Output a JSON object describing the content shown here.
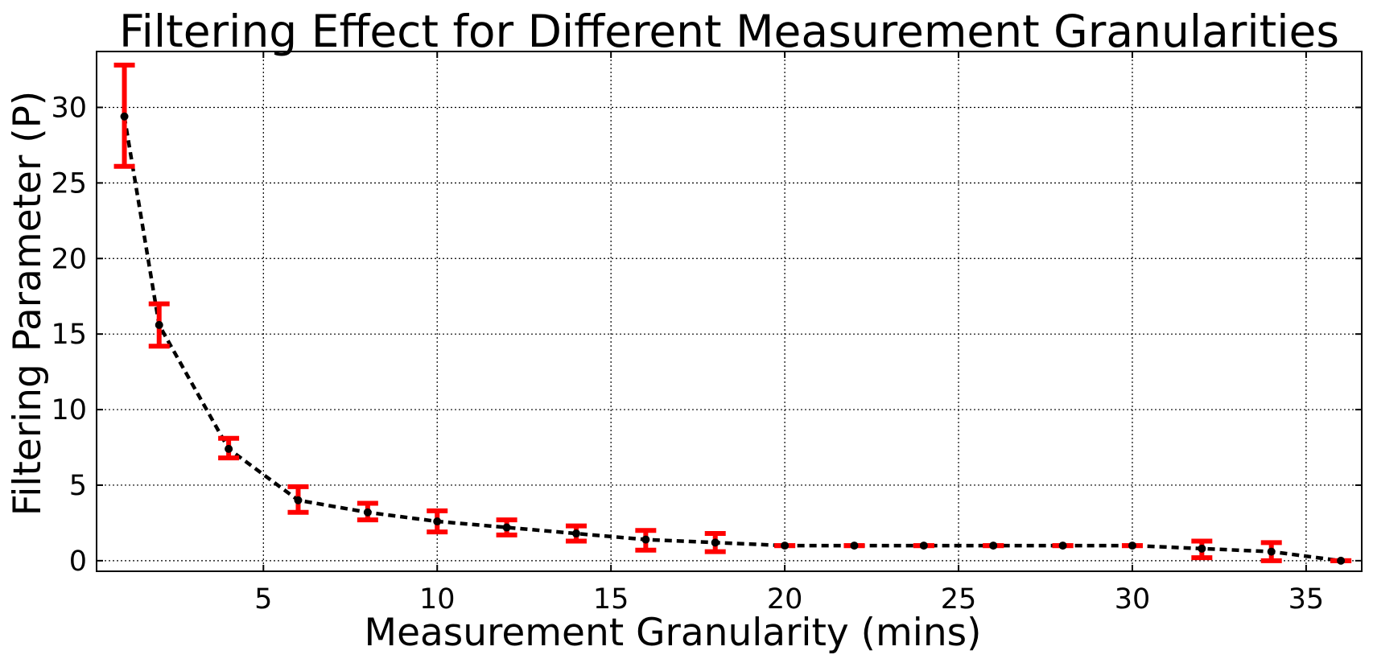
{
  "chart_data": {
    "type": "line",
    "title": "Filtering Effect for Different Measurement Granularities",
    "xlabel": "Measurement Granularity (mins)",
    "ylabel": "Filtering Parameter (P)",
    "xlim": [
      0.2,
      36.6
    ],
    "ylim": [
      -0.7,
      33.7
    ],
    "xticks": [
      5,
      10,
      15,
      20,
      25,
      30,
      35
    ],
    "yticks": [
      0,
      5,
      10,
      15,
      20,
      25,
      30
    ],
    "grid": true,
    "series": [
      {
        "line_style": "dashed",
        "line_color": "#000000",
        "error_color": "#ff0000",
        "points": [
          {
            "x": 1,
            "y": 29.4,
            "lower": 26.1,
            "upper": 32.8
          },
          {
            "x": 2,
            "y": 15.6,
            "lower": 14.2,
            "upper": 17.0
          },
          {
            "x": 4,
            "y": 7.4,
            "lower": 6.8,
            "upper": 8.1
          },
          {
            "x": 6,
            "y": 4.0,
            "lower": 3.2,
            "upper": 4.9
          },
          {
            "x": 8,
            "y": 3.2,
            "lower": 2.7,
            "upper": 3.8
          },
          {
            "x": 10,
            "y": 2.6,
            "lower": 1.9,
            "upper": 3.3
          },
          {
            "x": 12,
            "y": 2.2,
            "lower": 1.7,
            "upper": 2.7
          },
          {
            "x": 14,
            "y": 1.8,
            "lower": 1.3,
            "upper": 2.3
          },
          {
            "x": 16,
            "y": 1.4,
            "lower": 0.7,
            "upper": 2.0
          },
          {
            "x": 18,
            "y": 1.2,
            "lower": 0.6,
            "upper": 1.8
          },
          {
            "x": 20,
            "y": 1.0,
            "lower": 1.0,
            "upper": 1.0
          },
          {
            "x": 22,
            "y": 1.0,
            "lower": 1.0,
            "upper": 1.0
          },
          {
            "x": 24,
            "y": 1.0,
            "lower": 1.0,
            "upper": 1.0
          },
          {
            "x": 26,
            "y": 1.0,
            "lower": 1.0,
            "upper": 1.0
          },
          {
            "x": 28,
            "y": 1.0,
            "lower": 1.0,
            "upper": 1.0
          },
          {
            "x": 30,
            "y": 1.0,
            "lower": 1.0,
            "upper": 1.0
          },
          {
            "x": 32,
            "y": 0.8,
            "lower": 0.2,
            "upper": 1.3
          },
          {
            "x": 34,
            "y": 0.6,
            "lower": 0.0,
            "upper": 1.2
          },
          {
            "x": 36,
            "y": 0.0,
            "lower": 0.0,
            "upper": 0.0
          }
        ]
      }
    ]
  }
}
